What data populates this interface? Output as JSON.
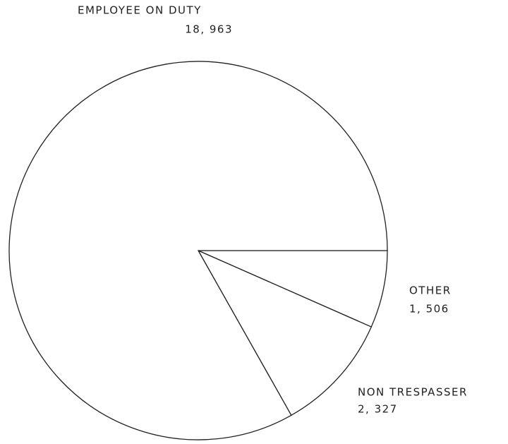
{
  "chart_data": {
    "type": "pie",
    "categories": [
      "OTHER",
      "NON TRESPASSER",
      "EMPLOYEE ON DUTY"
    ],
    "values": [
      1506,
      2327,
      18963
    ],
    "value_labels": [
      "1, 506",
      "2, 327",
      "18, 963"
    ],
    "color": "#ffffff",
    "edge_color": "#222222"
  }
}
